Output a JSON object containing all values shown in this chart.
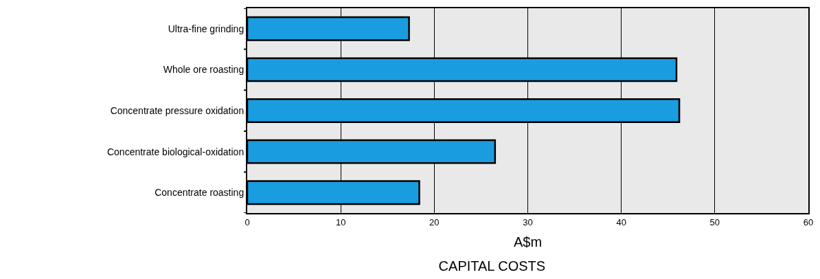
{
  "chart_data": {
    "type": "bar",
    "orientation": "horizontal",
    "title": "CAPITAL COSTS",
    "xlabel": "A$m",
    "categories": [
      "Ultra-fine grinding",
      "Whole ore roasting",
      "Concentrate pressure oxidation",
      "Concentrate biological-oxidation",
      "Concentrate roasting"
    ],
    "values": [
      17.3,
      45.9,
      46.2,
      26.5,
      18.4
    ],
    "color": "#1a9de0",
    "xlim": [
      0,
      60
    ],
    "xticks": [
      0,
      10,
      20,
      30,
      40,
      50,
      60
    ],
    "grid": "x",
    "legend": false
  }
}
